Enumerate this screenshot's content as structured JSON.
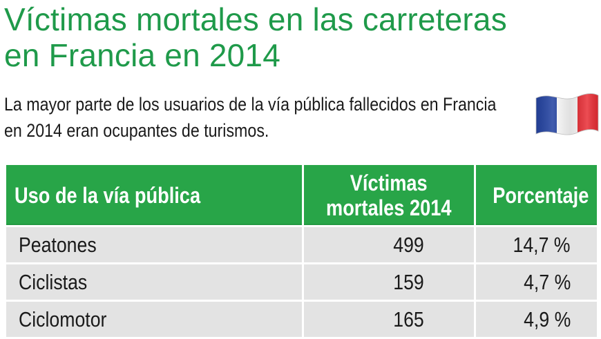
{
  "title": {
    "line1": "Víctimas mortales en las carreteras",
    "line2": "en Francia en 2014"
  },
  "subtitle": {
    "line1": "La mayor parte de los usuarios de la vía pública fallecidos en Francia",
    "line2": "en 2014 eran ocupantes de turismos."
  },
  "flag": {
    "icon": "france-flag-icon",
    "colors": [
      "#1f3f9f",
      "#ffffff",
      "#e8262e"
    ]
  },
  "table": {
    "headers": {
      "use": "Uso de la vía pública",
      "deaths_line1": "Víctimas",
      "deaths_line2": "mortales 2014",
      "percent": "Porcentaje"
    },
    "rows": [
      {
        "use": "Peatones",
        "deaths": "499",
        "percent": "14,7 %"
      },
      {
        "use": "Ciclistas",
        "deaths": "159",
        "percent": "4,7 %"
      },
      {
        "use": "Ciclomotor",
        "deaths": "165",
        "percent": "4,9 %"
      }
    ]
  },
  "colors": {
    "title": "#1f9a4a",
    "header_bg": "#28a548",
    "row_bg": "#e3e3e3"
  }
}
